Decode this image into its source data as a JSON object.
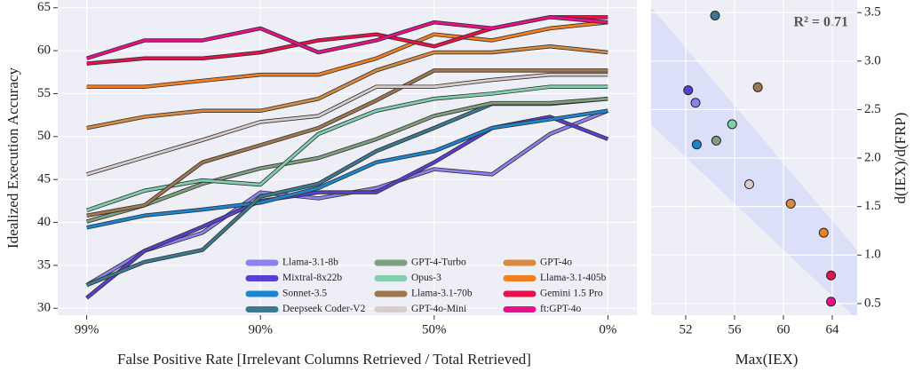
{
  "chart_data": [
    {
      "type": "line",
      "x": [
        0,
        1,
        2,
        3,
        4,
        5,
        6,
        7,
        8,
        9
      ],
      "xlim": [
        -0.5,
        9.5
      ],
      "xticks": [
        {
          "value": 0,
          "label": "99%"
        },
        {
          "value": 3,
          "label": "90%"
        },
        {
          "value": 6,
          "label": "50%"
        },
        {
          "value": 9,
          "label": "0%"
        }
      ],
      "ylim": [
        29.2,
        65.9
      ],
      "yticks": [
        30,
        35,
        40,
        45,
        50,
        55,
        60,
        65
      ],
      "xlabel": "False Positive Rate [Irrelevant Columns Retrieved / Total Retrieved]",
      "ylabel": "Idealized Execution Accuracy",
      "grid": true,
      "series": [
        {
          "name": "Llama-3.1-8b",
          "color": "#8d80f0",
          "values": [
            32.7,
            36.7,
            38.8,
            43.5,
            42.8,
            44,
            46.2,
            45.6,
            50.3,
            53
          ]
        },
        {
          "name": "Mixtral-8x22b",
          "color": "#5a3ed0",
          "values": [
            31.2,
            36.7,
            39.5,
            42.5,
            43.5,
            43.5,
            47,
            51,
            52.3,
            49.7
          ]
        },
        {
          "name": "Sonnet-3.5",
          "color": "#1a85d0",
          "values": [
            39.4,
            40.8,
            41.5,
            42.3,
            44,
            47,
            48.3,
            51,
            52,
            53
          ]
        },
        {
          "name": "Deepseek Coder-V2",
          "color": "#3a7a92",
          "values": [
            32.7,
            35.4,
            36.8,
            43,
            44.5,
            48.3,
            51,
            53.8,
            53.8,
            54.4
          ]
        },
        {
          "name": "GPT-4-Turbo",
          "color": "#7fa07f",
          "values": [
            40.1,
            42,
            44.5,
            46.3,
            47.5,
            49.7,
            52.4,
            53.9,
            53.9,
            54.4
          ]
        },
        {
          "name": "Opus-3",
          "color": "#80cfb0",
          "values": [
            41.4,
            43.7,
            44.9,
            44.4,
            50.3,
            53,
            54.4,
            55,
            55.8,
            55.8
          ]
        },
        {
          "name": "Llama-3.1-70b",
          "color": "#a07850",
          "values": [
            40.8,
            42,
            47,
            49,
            51,
            54.2,
            57.7,
            57.7,
            57.7,
            57.7
          ]
        },
        {
          "name": "GPT-4o-Mini",
          "color": "#d8cccc",
          "values": [
            45.6,
            47.6,
            49.6,
            51.7,
            52.4,
            55.8,
            55.8,
            56.6,
            57.2,
            57.2
          ]
        },
        {
          "name": "GPT-4o",
          "color": "#d88a40",
          "values": [
            51,
            52.3,
            53,
            53,
            54.4,
            57.7,
            59.8,
            59.8,
            60.5,
            59.8
          ]
        },
        {
          "name": "Llama-3.1-405b",
          "color": "#f08020",
          "values": [
            55.8,
            55.8,
            56.5,
            57.2,
            57.2,
            59.1,
            61.9,
            61.2,
            62.6,
            63.3
          ]
        },
        {
          "name": "Gemini 1.5 Pro",
          "color": "#e8104a",
          "values": [
            58.5,
            59.1,
            59.1,
            59.8,
            61.2,
            61.9,
            60.5,
            62.6,
            63.9,
            63.9
          ]
        },
        {
          "name": "ft:GPT-4o",
          "color": "#e8108a",
          "values": [
            59.1,
            61.2,
            61.2,
            62.6,
            59.8,
            61.2,
            63.3,
            62.6,
            63.9,
            63.3
          ]
        }
      ]
    },
    {
      "type": "scatter",
      "x": [
        54.4,
        52.2,
        52.8,
        55.8,
        54.5,
        52.9,
        57.9,
        57.2,
        60.6,
        63.3,
        63.9,
        63.9
      ],
      "values": [
        3.47,
        2.7,
        2.57,
        2.35,
        2.18,
        2.14,
        2.73,
        1.73,
        1.53,
        1.23,
        0.79,
        0.52
      ],
      "colors": [
        "#3a7a92",
        "#5a3ed0",
        "#8d80f0",
        "#80cfb0",
        "#7fa07f",
        "#1a85d0",
        "#a07850",
        "#d8cccc",
        "#d88a40",
        "#f08020",
        "#e8104a",
        "#e8108a"
      ],
      "xlim": [
        49.16,
        66.04
      ],
      "xticks": [
        52,
        56,
        60,
        64
      ],
      "ylim": [
        0.38,
        3.63
      ],
      "yticks": [
        0.5,
        1.0,
        1.5,
        2.0,
        2.5,
        3.0,
        3.5
      ],
      "yticklabels": [
        "0.5",
        "1.0",
        "1.5",
        "2.0",
        "2.5",
        "3.0",
        "3.5"
      ],
      "xlabel": "Max(IEX)",
      "ylabel": "d(IEX)/d(FRP)",
      "annotation": "R² = 0.71",
      "grid": true
    }
  ]
}
